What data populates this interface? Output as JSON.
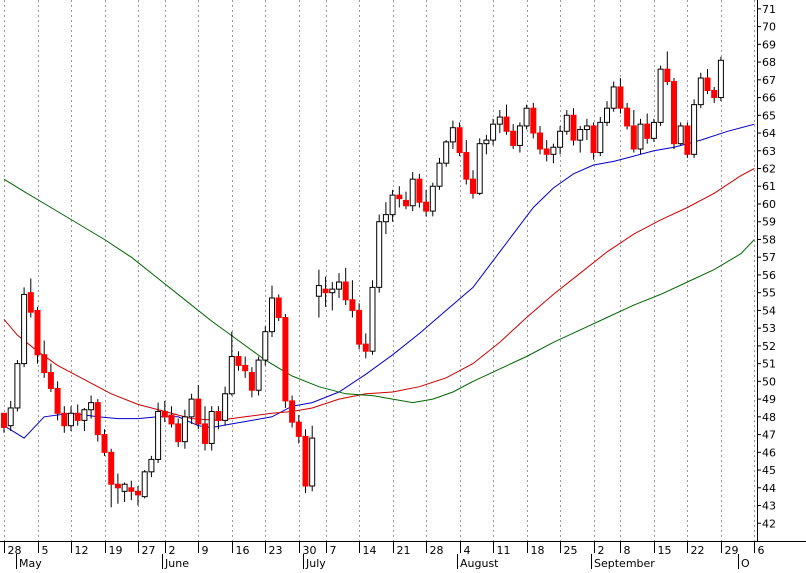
{
  "chart_data": {
    "type": "candlestick",
    "title": "",
    "xlabel": "",
    "ylabel": "",
    "ylim": [
      41,
      71.5
    ],
    "y_ticks": [
      42,
      43,
      44,
      45,
      46,
      47,
      48,
      49,
      50,
      51,
      52,
      53,
      54,
      55,
      56,
      57,
      58,
      59,
      60,
      61,
      62,
      63,
      64,
      65,
      66,
      67,
      68,
      69,
      70,
      71
    ],
    "grid": "vertical-dotted",
    "x_ticks": [
      {
        "label": "28",
        "i": 0
      },
      {
        "label": "5",
        "i": 5
      },
      {
        "label": "12",
        "i": 10
      },
      {
        "label": "19",
        "i": 15
      },
      {
        "label": "27",
        "i": 20
      },
      {
        "label": "2",
        "i": 24
      },
      {
        "label": "9",
        "i": 29
      },
      {
        "label": "16",
        "i": 34
      },
      {
        "label": "23",
        "i": 39
      },
      {
        "label": "30",
        "i": 44
      },
      {
        "label": "7",
        "i": 48
      },
      {
        "label": "14",
        "i": 53
      },
      {
        "label": "21",
        "i": 58
      },
      {
        "label": "28",
        "i": 63
      },
      {
        "label": "4",
        "i": 68
      },
      {
        "label": "11",
        "i": 73
      },
      {
        "label": "18",
        "i": 78
      },
      {
        "label": "25",
        "i": 83
      },
      {
        "label": "2",
        "i": 88
      },
      {
        "label": "8",
        "i": 92
      },
      {
        "label": "15",
        "i": 97
      },
      {
        "label": "22",
        "i": 102
      },
      {
        "label": "29",
        "i": 107
      },
      {
        "label": "6",
        "i": 112
      }
    ],
    "months": [
      {
        "label": "May",
        "i": 3
      },
      {
        "label": "June",
        "i": 24
      },
      {
        "label": "July",
        "i": 45
      },
      {
        "label": "August",
        "i": 68
      },
      {
        "label": "September",
        "i": 88
      },
      {
        "label": "O",
        "i": 110
      }
    ],
    "candles": [
      [
        48.2,
        48.2,
        47.1,
        47.4
      ],
      [
        47.5,
        48.9,
        47.2,
        48.5
      ],
      [
        48.5,
        51.2,
        48.3,
        51.0
      ],
      [
        51.0,
        55.3,
        50.8,
        54.9
      ],
      [
        55.0,
        55.8,
        53.6,
        53.9
      ],
      [
        54.0,
        54.2,
        51.0,
        51.5
      ],
      [
        51.5,
        52.3,
        50.2,
        50.5
      ],
      [
        50.5,
        51.0,
        49.4,
        49.6
      ],
      [
        49.6,
        50.0,
        47.8,
        48.2
      ],
      [
        48.2,
        48.6,
        47.1,
        47.5
      ],
      [
        47.5,
        48.6,
        47.2,
        48.2
      ],
      [
        48.2,
        48.7,
        47.5,
        47.8
      ],
      [
        47.8,
        48.5,
        47.2,
        48.4
      ],
      [
        48.4,
        49.2,
        47.9,
        48.8
      ],
      [
        48.8,
        49.0,
        46.6,
        47.0
      ],
      [
        47.0,
        47.3,
        45.8,
        46.0
      ],
      [
        46.0,
        46.2,
        42.9,
        44.2
      ],
      [
        44.2,
        44.8,
        43.1,
        44.0
      ],
      [
        43.8,
        44.3,
        43.2,
        44.2
      ],
      [
        44.0,
        44.4,
        43.3,
        43.8
      ],
      [
        43.8,
        44.1,
        43.0,
        43.6
      ],
      [
        43.5,
        45.0,
        43.4,
        44.9
      ],
      [
        44.9,
        45.8,
        44.6,
        45.6
      ],
      [
        45.6,
        48.8,
        45.4,
        48.3
      ],
      [
        48.3,
        48.9,
        47.7,
        48.0
      ],
      [
        48.1,
        48.6,
        47.4,
        47.6
      ],
      [
        47.6,
        47.9,
        46.3,
        46.6
      ],
      [
        46.6,
        48.4,
        46.2,
        48.0
      ],
      [
        48.0,
        49.3,
        47.6,
        49.0
      ],
      [
        49.0,
        49.8,
        47.3,
        47.6
      ],
      [
        47.6,
        48.6,
        46.1,
        46.5
      ],
      [
        46.5,
        48.6,
        46.1,
        48.3
      ],
      [
        48.3,
        48.6,
        47.3,
        47.8
      ],
      [
        47.8,
        49.7,
        47.5,
        49.3
      ],
      [
        49.3,
        52.8,
        49.2,
        51.4
      ],
      [
        51.4,
        51.7,
        50.6,
        50.9
      ],
      [
        50.9,
        51.4,
        50.2,
        50.6
      ],
      [
        50.5,
        50.8,
        49.1,
        49.5
      ],
      [
        49.5,
        51.4,
        49.2,
        51.2
      ],
      [
        51.2,
        53.1,
        50.9,
        52.8
      ],
      [
        52.8,
        55.4,
        52.5,
        54.7
      ],
      [
        54.7,
        54.9,
        53.4,
        53.6
      ],
      [
        53.6,
        53.8,
        48.5,
        48.9
      ],
      [
        48.9,
        49.2,
        47.4,
        47.7
      ],
      [
        47.7,
        48.1,
        46.5,
        46.9
      ],
      [
        46.9,
        47.3,
        43.7,
        44.1
      ],
      [
        44.1,
        47.5,
        43.8,
        46.8
      ],
      [
        54.8,
        56.3,
        53.6,
        55.4
      ],
      [
        55.2,
        55.9,
        54.2,
        55.0
      ],
      [
        55.0,
        55.6,
        54.0,
        55.2
      ],
      [
        55.2,
        56.1,
        54.7,
        55.6
      ],
      [
        55.6,
        56.4,
        54.3,
        54.6
      ],
      [
        54.6,
        55.7,
        53.6,
        54.0
      ],
      [
        54.0,
        54.4,
        51.8,
        52.1
      ],
      [
        52.1,
        52.7,
        51.3,
        51.7
      ],
      [
        51.7,
        55.7,
        51.5,
        55.3
      ],
      [
        55.3,
        59.4,
        55.0,
        59.0
      ],
      [
        59.0,
        60.1,
        58.3,
        59.4
      ],
      [
        59.4,
        60.8,
        59.0,
        60.5
      ],
      [
        60.5,
        61.0,
        59.8,
        60.3
      ],
      [
        60.2,
        60.7,
        59.7,
        59.9
      ],
      [
        59.9,
        61.8,
        59.6,
        61.4
      ],
      [
        61.4,
        61.7,
        59.8,
        60.1
      ],
      [
        60.1,
        60.8,
        59.3,
        59.6
      ],
      [
        59.6,
        61.2,
        59.3,
        61.0
      ],
      [
        61.0,
        62.6,
        60.8,
        62.3
      ],
      [
        62.3,
        63.6,
        62.1,
        63.5
      ],
      [
        63.5,
        64.7,
        63.1,
        64.3
      ],
      [
        64.3,
        64.6,
        62.7,
        62.9
      ],
      [
        62.9,
        63.6,
        61.1,
        61.4
      ],
      [
        61.4,
        61.9,
        60.3,
        60.6
      ],
      [
        60.6,
        63.7,
        60.5,
        63.4
      ],
      [
        63.4,
        63.9,
        62.8,
        63.6
      ],
      [
        63.6,
        64.8,
        63.3,
        64.5
      ],
      [
        64.5,
        65.3,
        64.0,
        64.9
      ],
      [
        64.9,
        65.6,
        63.9,
        64.1
      ],
      [
        64.1,
        64.5,
        63.1,
        63.3
      ],
      [
        63.3,
        64.6,
        62.9,
        64.4
      ],
      [
        64.4,
        65.6,
        64.2,
        65.4
      ],
      [
        65.4,
        65.7,
        63.7,
        64.0
      ],
      [
        64.0,
        64.4,
        62.8,
        63.1
      ],
      [
        63.1,
        63.6,
        62.4,
        62.8
      ],
      [
        62.8,
        63.4,
        62.3,
        63.2
      ],
      [
        63.2,
        64.4,
        62.8,
        64.1
      ],
      [
        64.1,
        65.3,
        63.9,
        65.0
      ],
      [
        65.0,
        65.4,
        63.3,
        63.6
      ],
      [
        63.6,
        64.4,
        62.9,
        64.2
      ],
      [
        64.2,
        64.8,
        63.6,
        64.4
      ],
      [
        64.4,
        64.6,
        62.5,
        62.9
      ],
      [
        62.9,
        64.9,
        62.7,
        64.6
      ],
      [
        64.6,
        65.8,
        64.4,
        65.4
      ],
      [
        65.4,
        66.9,
        65.2,
        66.6
      ],
      [
        66.6,
        67.1,
        65.1,
        65.4
      ],
      [
        65.4,
        65.7,
        64.2,
        64.4
      ],
      [
        64.4,
        65.3,
        62.9,
        63.1
      ],
      [
        63.1,
        64.8,
        62.8,
        64.5
      ],
      [
        64.5,
        65.1,
        63.4,
        63.7
      ],
      [
        63.7,
        64.8,
        63.5,
        64.6
      ],
      [
        64.6,
        67.8,
        64.4,
        67.6
      ],
      [
        67.6,
        68.6,
        66.7,
        66.9
      ],
      [
        66.9,
        67.1,
        63.1,
        63.4
      ],
      [
        63.4,
        64.6,
        63.3,
        64.4
      ],
      [
        64.4,
        64.6,
        62.6,
        62.8
      ],
      [
        62.8,
        65.9,
        62.6,
        65.6
      ],
      [
        65.6,
        67.4,
        65.4,
        67.1
      ],
      [
        67.1,
        67.6,
        66.2,
        66.4
      ],
      [
        66.4,
        66.6,
        65.7,
        66.0
      ],
      [
        66.0,
        68.3,
        65.8,
        68.1
      ]
    ],
    "series": [
      {
        "color": "#0000cc",
        "points": [
          [
            0,
            47.5
          ],
          [
            3,
            46.8
          ],
          [
            6,
            48.0
          ],
          [
            10,
            48.2
          ],
          [
            14,
            48.0
          ],
          [
            17,
            47.9
          ],
          [
            20,
            47.9
          ],
          [
            23,
            48.0
          ],
          [
            26,
            48.0
          ],
          [
            29,
            47.5
          ],
          [
            31,
            47.4
          ],
          [
            34,
            47.6
          ],
          [
            37,
            47.8
          ],
          [
            40,
            48.0
          ],
          [
            43,
            48.6
          ],
          [
            46,
            48.8
          ],
          [
            50,
            49.4
          ],
          [
            54,
            50.4
          ],
          [
            58,
            51.5
          ],
          [
            62,
            52.7
          ],
          [
            66,
            54.0
          ],
          [
            70,
            55.3
          ],
          [
            73,
            56.8
          ],
          [
            76,
            58.3
          ],
          [
            79,
            59.8
          ],
          [
            82,
            60.9
          ],
          [
            85,
            61.7
          ],
          [
            88,
            62.2
          ],
          [
            91,
            62.4
          ],
          [
            94,
            62.7
          ],
          [
            97,
            63.0
          ],
          [
            100,
            63.2
          ],
          [
            104,
            63.6
          ],
          [
            108,
            64.1
          ],
          [
            112,
            64.5
          ]
        ]
      },
      {
        "color": "#cc0000",
        "points": [
          [
            0,
            53.5
          ],
          [
            2,
            52.6
          ],
          [
            5,
            51.7
          ],
          [
            8,
            50.9
          ],
          [
            12,
            50.1
          ],
          [
            16,
            49.3
          ],
          [
            20,
            48.7
          ],
          [
            24,
            48.3
          ],
          [
            28,
            47.9
          ],
          [
            32,
            47.8
          ],
          [
            36,
            48.0
          ],
          [
            40,
            48.2
          ],
          [
            43,
            48.3
          ],
          [
            46,
            48.5
          ],
          [
            50,
            49.0
          ],
          [
            54,
            49.3
          ],
          [
            58,
            49.4
          ],
          [
            62,
            49.7
          ],
          [
            66,
            50.2
          ],
          [
            70,
            51.0
          ],
          [
            74,
            52.2
          ],
          [
            78,
            53.6
          ],
          [
            82,
            54.9
          ],
          [
            86,
            56.1
          ],
          [
            90,
            57.3
          ],
          [
            94,
            58.3
          ],
          [
            98,
            59.1
          ],
          [
            102,
            59.8
          ],
          [
            106,
            60.6
          ],
          [
            110,
            61.6
          ],
          [
            112,
            62.0
          ]
        ]
      },
      {
        "color": "#006600",
        "points": [
          [
            0,
            61.4
          ],
          [
            3,
            60.7
          ],
          [
            7,
            59.8
          ],
          [
            11,
            58.9
          ],
          [
            15,
            58.0
          ],
          [
            19,
            57.0
          ],
          [
            23,
            55.8
          ],
          [
            27,
            54.6
          ],
          [
            31,
            53.4
          ],
          [
            35,
            52.3
          ],
          [
            39,
            51.2
          ],
          [
            43,
            50.3
          ],
          [
            47,
            49.7
          ],
          [
            51,
            49.3
          ],
          [
            55,
            49.2
          ],
          [
            58,
            49.0
          ],
          [
            61,
            48.8
          ],
          [
            64,
            49.0
          ],
          [
            67,
            49.4
          ],
          [
            70,
            50.0
          ],
          [
            74,
            50.7
          ],
          [
            78,
            51.4
          ],
          [
            82,
            52.2
          ],
          [
            86,
            52.9
          ],
          [
            90,
            53.6
          ],
          [
            94,
            54.3
          ],
          [
            98,
            54.9
          ],
          [
            102,
            55.6
          ],
          [
            106,
            56.3
          ],
          [
            110,
            57.2
          ],
          [
            112,
            58.0
          ]
        ]
      }
    ]
  }
}
